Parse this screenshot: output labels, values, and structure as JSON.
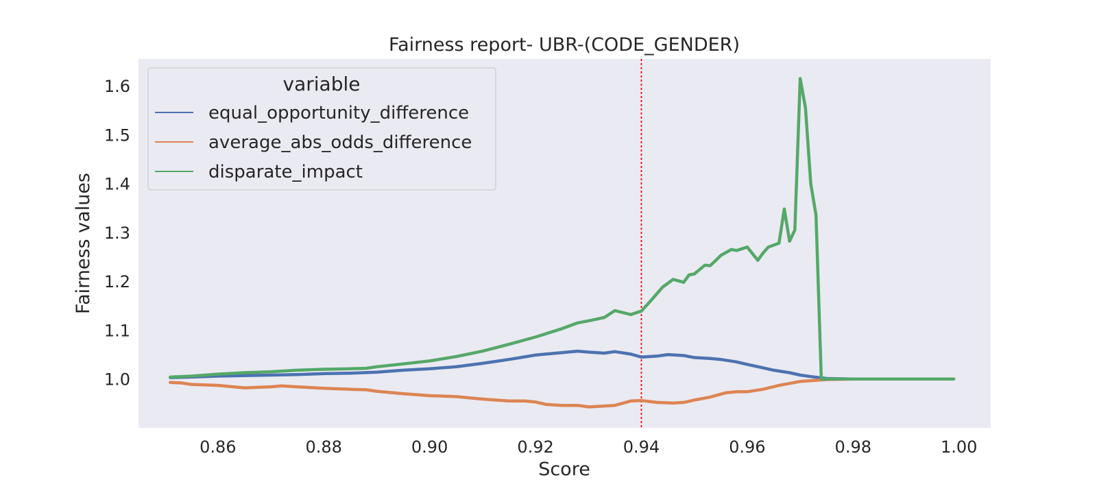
{
  "chart_data": {
    "type": "line",
    "title": "Fairness report- UBR-(CODE_GENDER)",
    "xlabel": "Score",
    "ylabel": "Fairness values",
    "xlim": [
      0.845,
      1.006
    ],
    "ylim": [
      0.9,
      1.655
    ],
    "xticks": [
      "0.86",
      "0.88",
      "0.90",
      "0.92",
      "0.94",
      "0.96",
      "0.98",
      "1.00"
    ],
    "yticks": [
      "1.0",
      "1.1",
      "1.2",
      "1.3",
      "1.4",
      "1.5",
      "1.6"
    ],
    "grid": false,
    "background": "#eaeaf2",
    "legend": {
      "title": "variable",
      "position": "top-left"
    },
    "reference_line": {
      "x": 0.94,
      "color": "#e8000b",
      "style": "dotted"
    },
    "series": [
      {
        "name": "equal_opportunity_difference",
        "color": "#4c72b0",
        "x": [
          0.851,
          0.855,
          0.86,
          0.865,
          0.87,
          0.875,
          0.88,
          0.885,
          0.89,
          0.895,
          0.9,
          0.905,
          0.91,
          0.915,
          0.92,
          0.925,
          0.928,
          0.93,
          0.933,
          0.935,
          0.938,
          0.94,
          0.943,
          0.945,
          0.948,
          0.95,
          0.953,
          0.955,
          0.958,
          0.96,
          0.963,
          0.965,
          0.968,
          0.97,
          0.972,
          0.975,
          0.98,
          0.985,
          0.99,
          0.995,
          0.999
        ],
        "values": [
          1.003,
          1.004,
          1.006,
          1.007,
          1.008,
          1.009,
          1.011,
          1.012,
          1.014,
          1.018,
          1.021,
          1.025,
          1.032,
          1.04,
          1.049,
          1.054,
          1.057,
          1.055,
          1.053,
          1.056,
          1.051,
          1.045,
          1.047,
          1.05,
          1.048,
          1.044,
          1.042,
          1.04,
          1.035,
          1.03,
          1.023,
          1.018,
          1.013,
          1.008,
          1.005,
          1.001,
          1.0,
          1.0,
          1.0,
          1.0,
          1.0
        ]
      },
      {
        "name": "average_abs_odds_difference",
        "color": "#dd8452",
        "x": [
          0.851,
          0.853,
          0.855,
          0.86,
          0.865,
          0.87,
          0.872,
          0.875,
          0.88,
          0.885,
          0.888,
          0.89,
          0.895,
          0.9,
          0.905,
          0.91,
          0.915,
          0.918,
          0.92,
          0.922,
          0.925,
          0.928,
          0.93,
          0.932,
          0.935,
          0.938,
          0.94,
          0.943,
          0.946,
          0.948,
          0.95,
          0.953,
          0.956,
          0.958,
          0.96,
          0.963,
          0.966,
          0.97,
          0.975,
          0.98,
          0.985,
          0.99,
          0.995,
          0.999
        ],
        "values": [
          0.993,
          0.992,
          0.989,
          0.987,
          0.982,
          0.984,
          0.986,
          0.984,
          0.981,
          0.979,
          0.978,
          0.975,
          0.97,
          0.966,
          0.964,
          0.959,
          0.955,
          0.955,
          0.953,
          0.948,
          0.946,
          0.946,
          0.943,
          0.944,
          0.946,
          0.955,
          0.956,
          0.952,
          0.951,
          0.952,
          0.957,
          0.963,
          0.972,
          0.974,
          0.974,
          0.979,
          0.987,
          0.995,
          0.999,
          1.0,
          1.0,
          1.0,
          1.0,
          1.0
        ]
      },
      {
        "name": "disparate_impact",
        "color": "#55a868",
        "x": [
          0.851,
          0.855,
          0.86,
          0.865,
          0.87,
          0.875,
          0.88,
          0.885,
          0.888,
          0.89,
          0.895,
          0.9,
          0.905,
          0.91,
          0.915,
          0.92,
          0.925,
          0.928,
          0.93,
          0.933,
          0.935,
          0.938,
          0.94,
          0.942,
          0.944,
          0.946,
          0.948,
          0.949,
          0.95,
          0.952,
          0.953,
          0.954,
          0.955,
          0.957,
          0.958,
          0.96,
          0.962,
          0.963,
          0.964,
          0.966,
          0.967,
          0.968,
          0.969,
          0.97,
          0.971,
          0.972,
          0.973,
          0.974,
          0.975,
          0.975,
          0.98,
          0.985,
          0.99,
          0.995,
          0.999
        ],
        "values": [
          1.004,
          1.006,
          1.01,
          1.013,
          1.015,
          1.018,
          1.02,
          1.021,
          1.022,
          1.025,
          1.031,
          1.037,
          1.046,
          1.057,
          1.071,
          1.086,
          1.103,
          1.115,
          1.119,
          1.126,
          1.14,
          1.132,
          1.139,
          1.163,
          1.188,
          1.204,
          1.198,
          1.213,
          1.215,
          1.233,
          1.232,
          1.242,
          1.253,
          1.265,
          1.263,
          1.27,
          1.243,
          1.258,
          1.27,
          1.278,
          1.348,
          1.282,
          1.305,
          1.615,
          1.555,
          1.4,
          1.335,
          1.0,
          1.0,
          1.0,
          1.0,
          1.0,
          1.0,
          1.0,
          1.0
        ]
      }
    ]
  }
}
